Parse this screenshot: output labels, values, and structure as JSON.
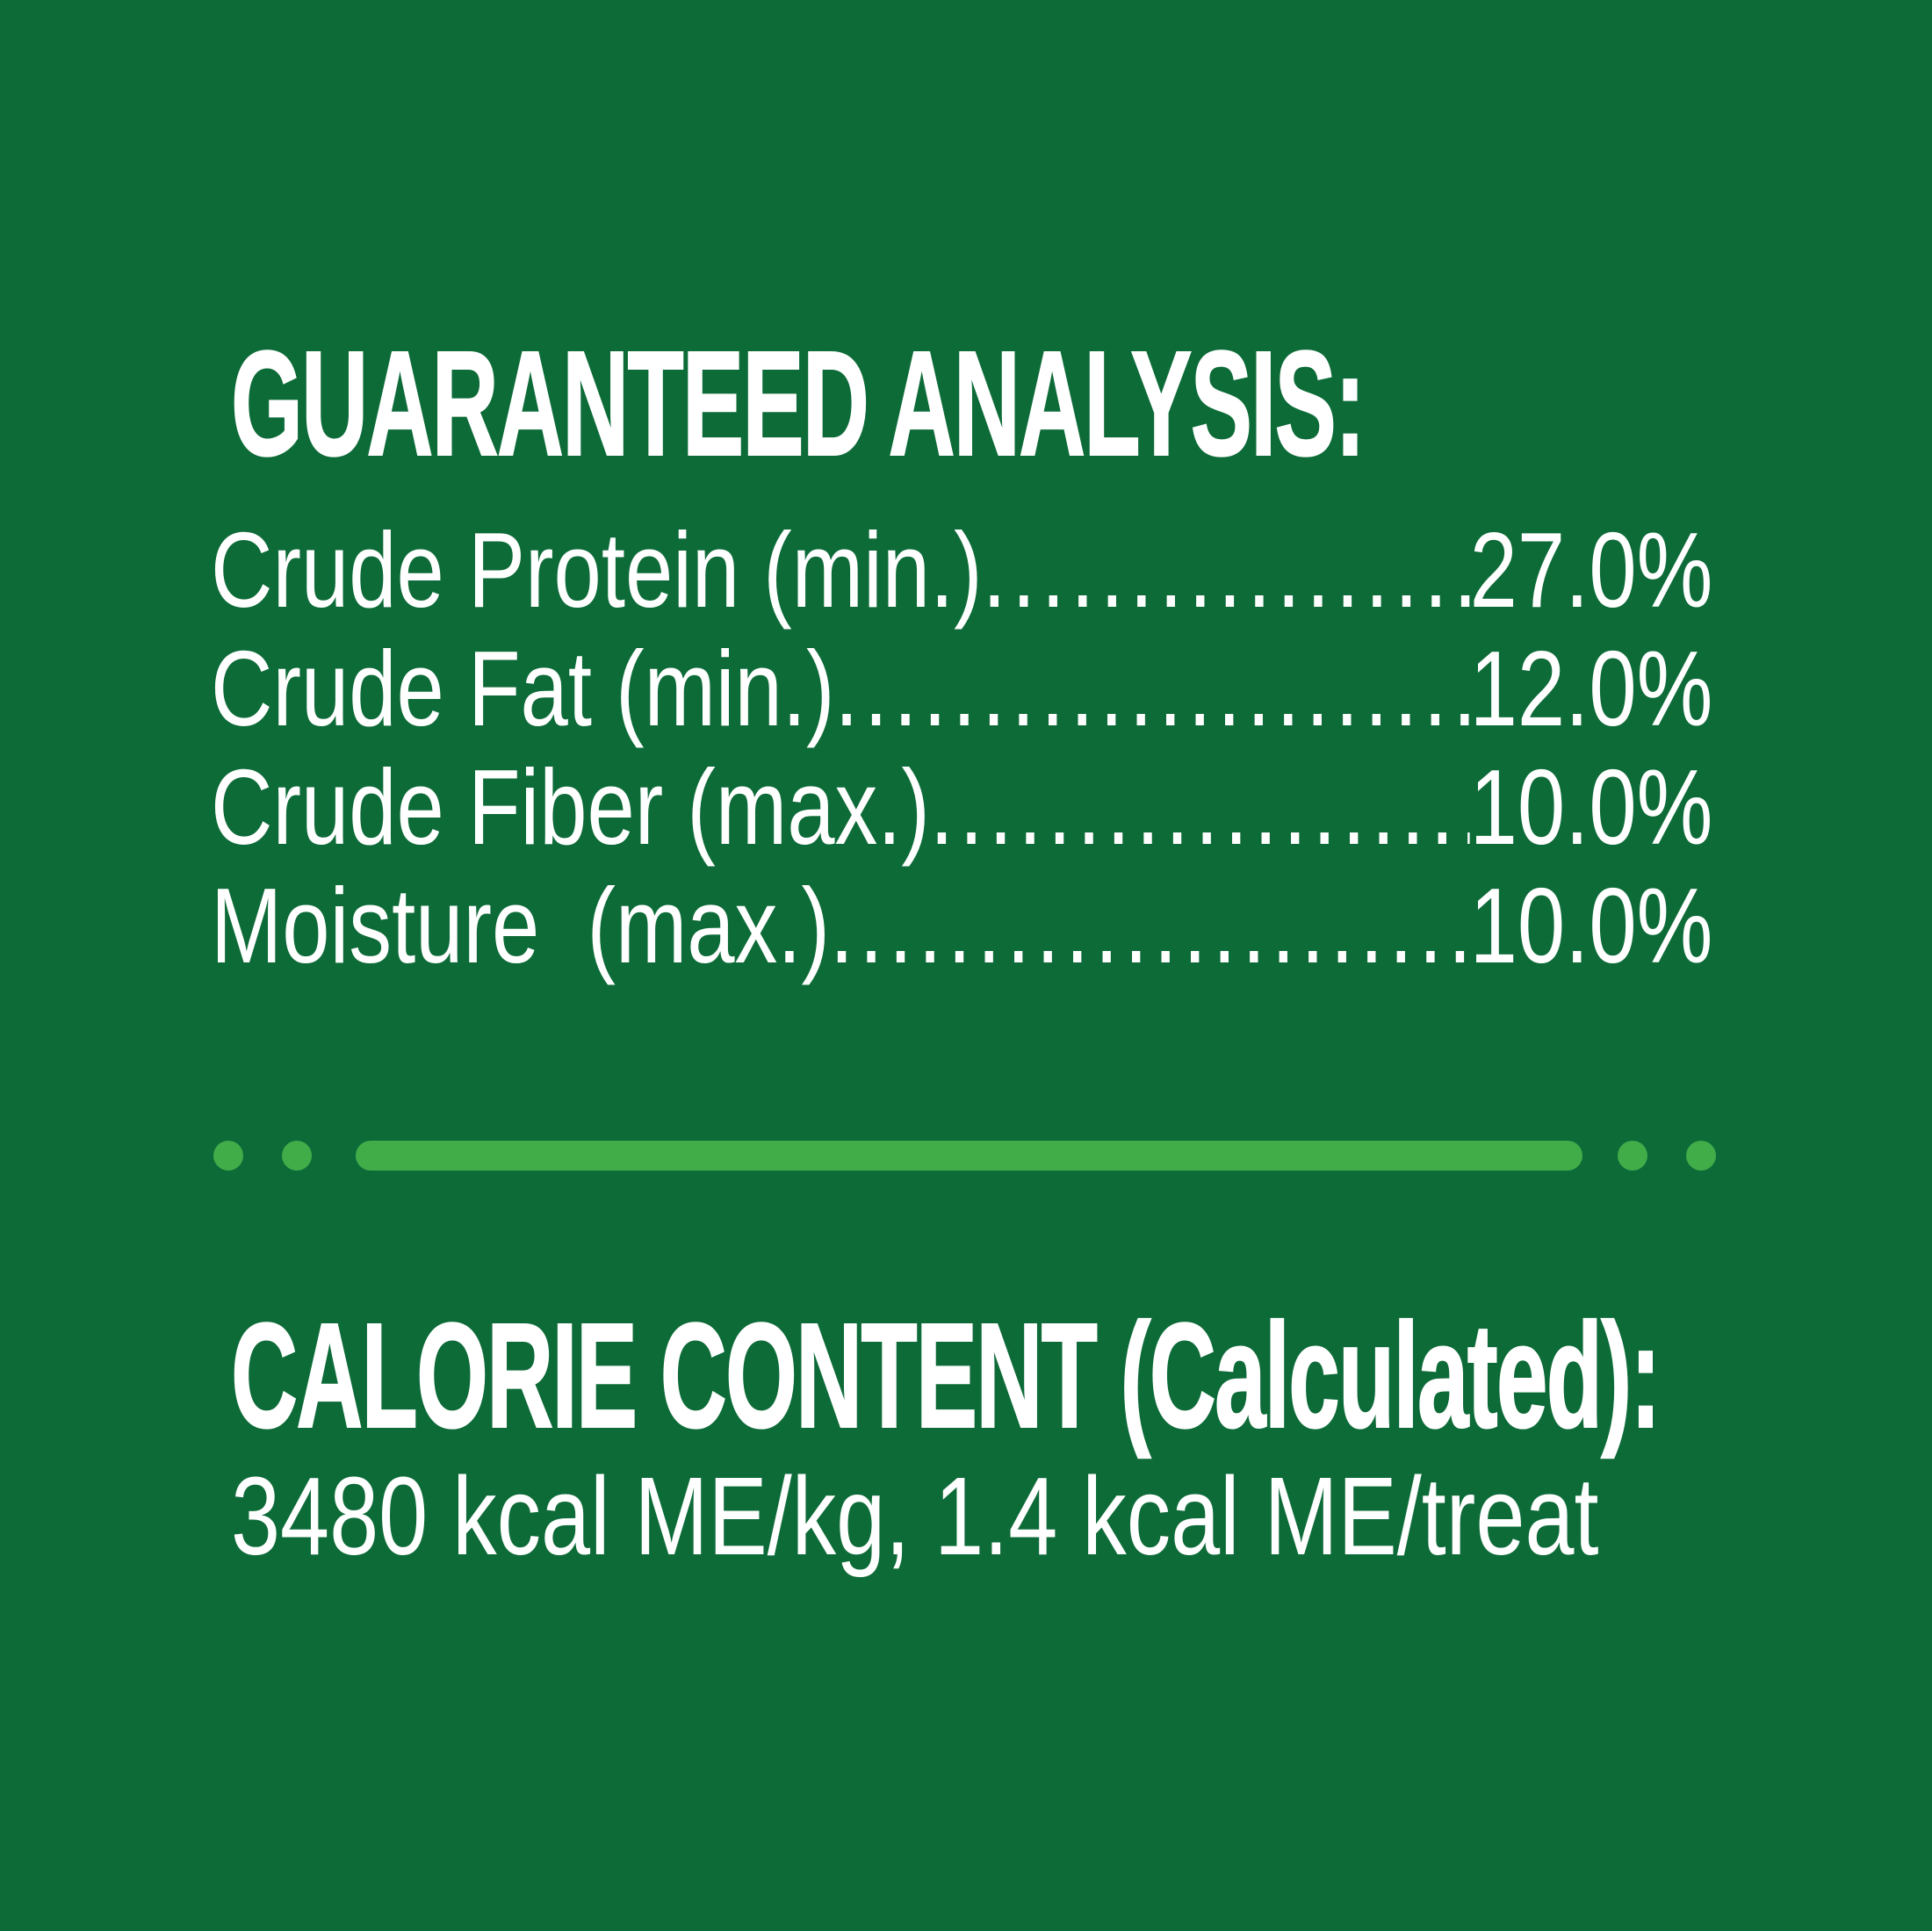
{
  "colors": {
    "background": "#0D6B38",
    "accent_green": "#41AD49",
    "text": "#FFFFFF"
  },
  "guaranteed_analysis": {
    "heading": "GUARANTEED ANALYSIS:",
    "rows": [
      {
        "label": "Crude Protein (min.)",
        "value": "27.0%"
      },
      {
        "label": "Crude Fat (min.)",
        "value": "12.0%"
      },
      {
        "label": "Crude Fiber (max.)",
        "value": "10.0%"
      },
      {
        "label": "Moisture  (max.)",
        "value": "10.0%"
      }
    ]
  },
  "calorie_content": {
    "heading": "CALORIE CONTENT (Calculated):",
    "body": "3480 kcal ME/kg, 1.4 kcal ME/treat"
  }
}
